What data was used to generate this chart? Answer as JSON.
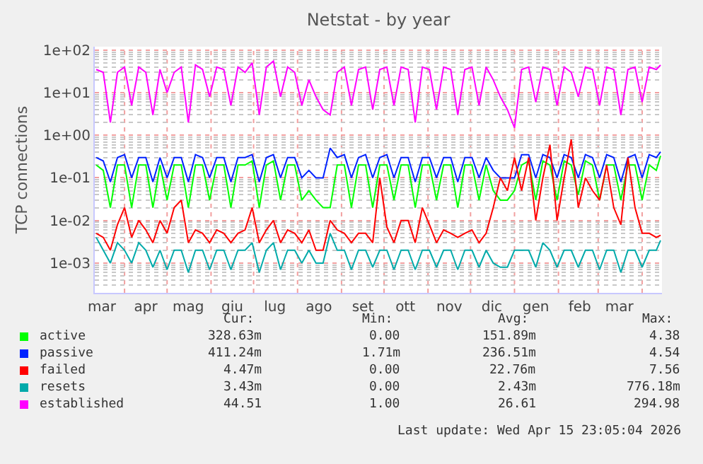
{
  "chart_data": {
    "type": "line",
    "title": "Netstat - by year",
    "ylabel": "TCP connections",
    "x": [
      "2025-03-12",
      "2025-03-17",
      "2025-03-22",
      "2025-03-27",
      "2025-04-01",
      "2025-04-06",
      "2025-04-11",
      "2025-04-16",
      "2025-04-21",
      "2025-04-26",
      "2025-05-01",
      "2025-05-06",
      "2025-05-11",
      "2025-05-16",
      "2025-05-21",
      "2025-05-26",
      "2025-05-31",
      "2025-06-05",
      "2025-06-10",
      "2025-06-15",
      "2025-06-20",
      "2025-06-25",
      "2025-06-30",
      "2025-07-05",
      "2025-07-10",
      "2025-07-15",
      "2025-07-20",
      "2025-07-25",
      "2025-07-30",
      "2025-08-04",
      "2025-08-09",
      "2025-08-14",
      "2025-08-19",
      "2025-08-24",
      "2025-08-29",
      "2025-09-03",
      "2025-09-08",
      "2025-09-13",
      "2025-09-18",
      "2025-09-23",
      "2025-09-28",
      "2025-10-03",
      "2025-10-08",
      "2025-10-13",
      "2025-10-18",
      "2025-10-23",
      "2025-10-28",
      "2025-11-02",
      "2025-11-07",
      "2025-11-12",
      "2025-11-17",
      "2025-11-22",
      "2025-11-27",
      "2025-12-02",
      "2025-12-07",
      "2025-12-12",
      "2025-12-17",
      "2025-12-22",
      "2025-12-27",
      "2026-01-01",
      "2026-01-06",
      "2026-01-11",
      "2026-01-16",
      "2026-01-21",
      "2026-01-26",
      "2026-01-31",
      "2026-02-05",
      "2026-02-10",
      "2026-02-15",
      "2026-02-20",
      "2026-02-25",
      "2026-03-02",
      "2026-03-07",
      "2026-03-12",
      "2026-03-17",
      "2026-03-22",
      "2026-03-27",
      "2026-04-01",
      "2026-04-06",
      "2026-04-11",
      "2026-04-14"
    ],
    "series": [
      {
        "name": "active",
        "color": "#00ff00",
        "values": [
          0.2,
          0.15,
          0.02,
          0.2,
          0.2,
          0.02,
          0.2,
          0.2,
          0.02,
          0.2,
          0.03,
          0.2,
          0.2,
          0.02,
          0.2,
          0.2,
          0.03,
          0.2,
          0.2,
          0.02,
          0.2,
          0.2,
          0.25,
          0.02,
          0.2,
          0.25,
          0.03,
          0.2,
          0.2,
          0.03,
          0.05,
          0.03,
          0.02,
          0.02,
          0.2,
          0.2,
          0.02,
          0.2,
          0.2,
          0.02,
          0.2,
          0.2,
          0.03,
          0.2,
          0.2,
          0.02,
          0.2,
          0.2,
          0.03,
          0.2,
          0.2,
          0.02,
          0.2,
          0.2,
          0.03,
          0.2,
          0.05,
          0.03,
          0.03,
          0.05,
          0.2,
          0.25,
          0.03,
          0.25,
          0.2,
          0.03,
          0.25,
          0.2,
          0.04,
          0.25,
          0.2,
          0.03,
          0.2,
          0.2,
          0.03,
          0.2,
          0.2,
          0.03,
          0.2,
          0.15,
          0.33
        ]
      },
      {
        "name": "passive",
        "color": "#0022ff",
        "values": [
          0.3,
          0.25,
          0.08,
          0.3,
          0.35,
          0.1,
          0.3,
          0.3,
          0.08,
          0.3,
          0.1,
          0.3,
          0.3,
          0.08,
          0.35,
          0.3,
          0.1,
          0.3,
          0.3,
          0.08,
          0.3,
          0.3,
          0.35,
          0.08,
          0.3,
          0.35,
          0.1,
          0.3,
          0.3,
          0.1,
          0.15,
          0.1,
          0.1,
          0.5,
          0.3,
          0.35,
          0.1,
          0.3,
          0.35,
          0.1,
          0.3,
          0.35,
          0.1,
          0.3,
          0.3,
          0.08,
          0.3,
          0.3,
          0.1,
          0.3,
          0.3,
          0.08,
          0.3,
          0.3,
          0.1,
          0.3,
          0.15,
          0.1,
          0.1,
          0.1,
          0.35,
          0.35,
          0.1,
          0.35,
          0.3,
          0.1,
          0.35,
          0.3,
          0.1,
          0.35,
          0.3,
          0.1,
          0.35,
          0.3,
          0.08,
          0.3,
          0.35,
          0.1,
          0.35,
          0.3,
          0.41
        ]
      },
      {
        "name": "failed",
        "color": "#ff0000",
        "values": [
          0.005,
          0.004,
          0.002,
          0.008,
          0.02,
          0.004,
          0.01,
          0.006,
          0.003,
          0.01,
          0.005,
          0.02,
          0.03,
          0.003,
          0.006,
          0.005,
          0.003,
          0.006,
          0.005,
          0.003,
          0.005,
          0.006,
          0.02,
          0.003,
          0.006,
          0.01,
          0.003,
          0.006,
          0.005,
          0.003,
          0.006,
          0.002,
          0.002,
          0.01,
          0.006,
          0.005,
          0.003,
          0.005,
          0.005,
          0.003,
          0.1,
          0.007,
          0.003,
          0.01,
          0.01,
          0.003,
          0.02,
          0.008,
          0.003,
          0.006,
          0.005,
          0.004,
          0.005,
          0.006,
          0.003,
          0.005,
          0.02,
          0.1,
          0.05,
          0.3,
          0.05,
          0.3,
          0.01,
          0.1,
          0.6,
          0.01,
          0.1,
          0.8,
          0.02,
          0.1,
          0.05,
          0.03,
          0.2,
          0.02,
          0.008,
          0.3,
          0.02,
          0.005,
          0.005,
          0.004,
          0.0045
        ]
      },
      {
        "name": "resets",
        "color": "#00aaaa",
        "values": [
          0.004,
          0.002,
          0.001,
          0.003,
          0.002,
          0.001,
          0.003,
          0.002,
          0.0008,
          0.002,
          0.0007,
          0.002,
          0.002,
          0.0006,
          0.002,
          0.002,
          0.0007,
          0.002,
          0.002,
          0.0007,
          0.002,
          0.002,
          0.003,
          0.0006,
          0.002,
          0.003,
          0.0007,
          0.002,
          0.002,
          0.001,
          0.002,
          0.001,
          0.001,
          0.005,
          0.002,
          0.002,
          0.0007,
          0.002,
          0.002,
          0.0008,
          0.002,
          0.002,
          0.0007,
          0.002,
          0.002,
          0.0007,
          0.002,
          0.002,
          0.0008,
          0.002,
          0.002,
          0.0007,
          0.002,
          0.002,
          0.0008,
          0.002,
          0.001,
          0.0008,
          0.0008,
          0.002,
          0.002,
          0.002,
          0.0008,
          0.003,
          0.002,
          0.0008,
          0.002,
          0.002,
          0.0008,
          0.002,
          0.002,
          0.0007,
          0.002,
          0.002,
          0.0006,
          0.002,
          0.002,
          0.0008,
          0.002,
          0.002,
          0.0034
        ]
      },
      {
        "name": "established",
        "color": "#ff00ff",
        "values": [
          35,
          30,
          2,
          30,
          40,
          5,
          40,
          30,
          3,
          35,
          10,
          30,
          40,
          2,
          45,
          35,
          8,
          40,
          35,
          5,
          40,
          30,
          50,
          3,
          40,
          55,
          8,
          40,
          30,
          5,
          20,
          8,
          4,
          3,
          30,
          40,
          5,
          35,
          40,
          4,
          35,
          40,
          5,
          40,
          35,
          2,
          40,
          35,
          4,
          40,
          35,
          3,
          35,
          40,
          5,
          40,
          20,
          8,
          4,
          1.5,
          35,
          40,
          6,
          40,
          35,
          5,
          40,
          30,
          8,
          40,
          35,
          5,
          40,
          35,
          3,
          35,
          40,
          6,
          40,
          35,
          44.5
        ]
      }
    ],
    "log": true,
    "ylim": [
      0.0002,
      120
    ],
    "yticks": [
      {
        "value": 0.001,
        "label": "1e-03"
      },
      {
        "value": 0.01,
        "label": "1e-02"
      },
      {
        "value": 0.1,
        "label": "1e-01"
      },
      {
        "value": 1,
        "label": "1e+00"
      },
      {
        "value": 10,
        "label": "1e+01"
      },
      {
        "value": 100,
        "label": "1e+02"
      }
    ],
    "xlim": [
      "2025-03-11",
      "2026-04-15"
    ],
    "xticks": [
      {
        "value": "2025-03-16",
        "label": "mar"
      },
      {
        "value": "2025-04-01",
        "label": null
      },
      {
        "value": "2025-04-16",
        "label": "apr"
      },
      {
        "value": "2025-05-01",
        "label": null
      },
      {
        "value": "2025-05-16",
        "label": "mag"
      },
      {
        "value": "2025-06-01",
        "label": null
      },
      {
        "value": "2025-06-16",
        "label": "giu"
      },
      {
        "value": "2025-07-01",
        "label": null
      },
      {
        "value": "2025-07-16",
        "label": "lug"
      },
      {
        "value": "2025-08-01",
        "label": null
      },
      {
        "value": "2025-08-16",
        "label": "ago"
      },
      {
        "value": "2025-09-01",
        "label": null
      },
      {
        "value": "2025-09-16",
        "label": "set"
      },
      {
        "value": "2025-10-01",
        "label": null
      },
      {
        "value": "2025-10-16",
        "label": "ott"
      },
      {
        "value": "2025-11-01",
        "label": null
      },
      {
        "value": "2025-11-16",
        "label": "nov"
      },
      {
        "value": "2025-12-01",
        "label": null
      },
      {
        "value": "2025-12-16",
        "label": "dic"
      },
      {
        "value": "2026-01-01",
        "label": null
      },
      {
        "value": "2026-01-16",
        "label": "gen"
      },
      {
        "value": "2026-02-01",
        "label": null
      },
      {
        "value": "2026-02-16",
        "label": "feb"
      },
      {
        "value": "2026-03-01",
        "label": null
      },
      {
        "value": "2026-03-16",
        "label": "mar"
      },
      {
        "value": "2026-04-01",
        "label": null
      }
    ],
    "grid": true,
    "legend": "bottom",
    "marker": "none",
    "annotations": [
      "Cur:",
      "Min:",
      "Avg:",
      "Max:",
      "328.63m",
      "0.00",
      "151.89m",
      "4.38",
      "411.24m",
      "1.71m",
      "236.51m",
      "4.54",
      "4.47m",
      "0.00",
      "22.76m",
      "7.56",
      "3.43m",
      "0.00",
      "2.43m",
      "776.18m",
      "44.51",
      "1.00",
      "26.61",
      "294.98",
      "Last update: Wed Apr 15 23:05:04 2026"
    ]
  }
}
